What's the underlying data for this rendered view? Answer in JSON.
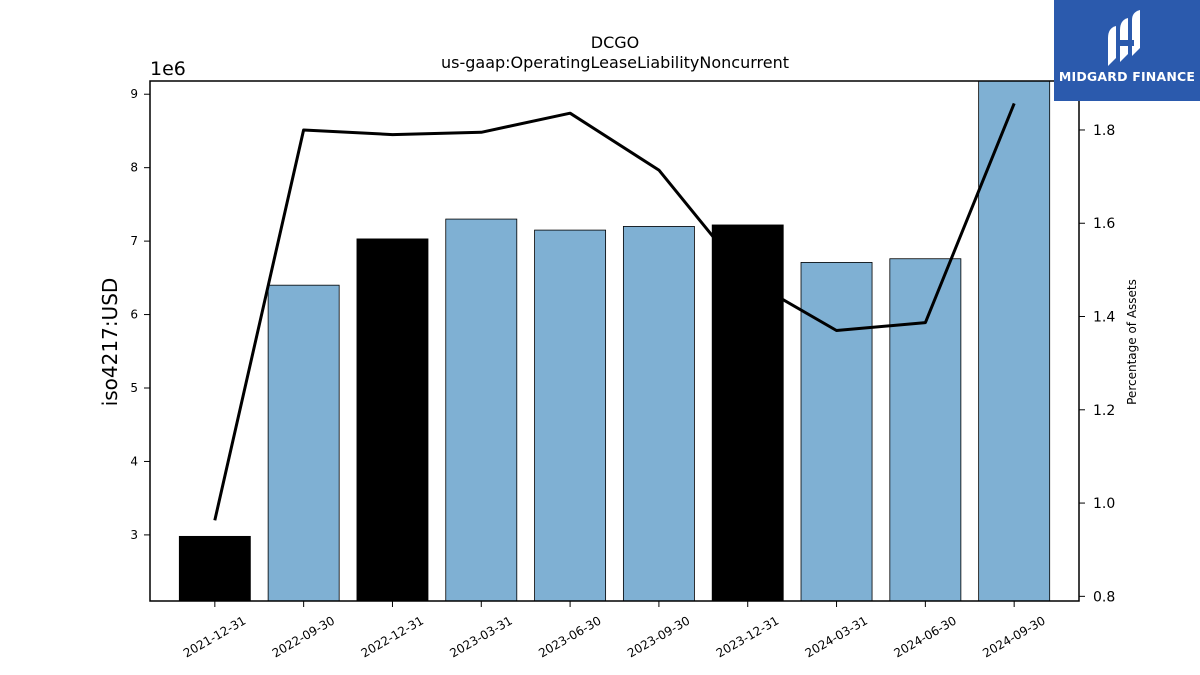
{
  "chart_data": {
    "type": "bar",
    "title": "DCGO",
    "subtitle": "us-gaap:OperatingLeaseLiabilityNoncurrent",
    "ylabel": "iso4217:USD",
    "y_offset_label": "1e6",
    "y2label": "Percentage of Assets",
    "categories": [
      "2021-12-31",
      "2022-09-30",
      "2022-12-31",
      "2023-03-31",
      "2023-06-30",
      "2023-09-30",
      "2023-12-31",
      "2024-03-31",
      "2024-06-30",
      "2024-09-30"
    ],
    "values": [
      2980000,
      6400000,
      7030000,
      7300000,
      7150000,
      7200000,
      7220000,
      6710000,
      6760000,
      9180000
    ],
    "bar_colors": [
      "#000000",
      "#7fb0d3",
      "#000000",
      "#7fb0d3",
      "#7fb0d3",
      "#7fb0d3",
      "#000000",
      "#7fb0d3",
      "#7fb0d3",
      "#7fb0d3"
    ],
    "line_series": {
      "values": [
        0.963,
        1.8,
        1.79,
        1.795,
        1.836,
        1.714,
        1.48,
        1.37,
        1.387,
        1.857
      ],
      "color": "#000000"
    },
    "ylim": [
      2100000,
      9180000
    ],
    "y2lim": [
      0.79,
      1.905
    ],
    "yticks": [
      3,
      4,
      5,
      6,
      7,
      8,
      9
    ],
    "y2ticks": [
      "0.8",
      "1.0",
      "1.2",
      "1.4",
      "1.6",
      "1.8"
    ],
    "grid": false
  },
  "logo": {
    "text": "MIDGARD FINANCE",
    "brand_color": "#2b5aad"
  }
}
